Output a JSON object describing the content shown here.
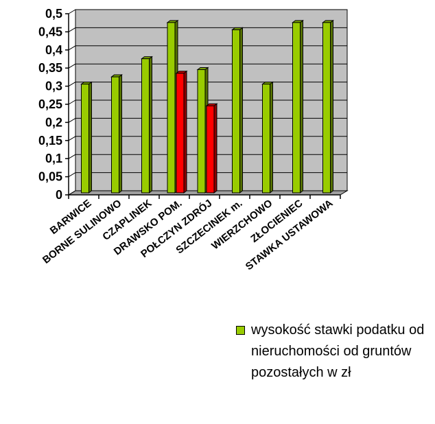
{
  "chart_data": {
    "type": "bar",
    "categories": [
      "BARWICE",
      "BORNE SULINOWO",
      "CZAPLINEK",
      "DRAWSKO POM.",
      "POŁCZYN ZDRÓJ",
      "SZCZECINEK m.",
      "WIERZCHOWO",
      "ZŁOCIENIEC",
      "STAWKA USTAWOWA"
    ],
    "series": [
      {
        "name": "wysokość stawki podatku od nieruchomości od gruntów pozostałych w zł",
        "color": "#99cc00",
        "values": [
          0.3,
          0.32,
          0.37,
          0.47,
          0.34,
          0.45,
          0.3,
          0.47,
          0.47
        ]
      },
      {
        "color": "#ff0000",
        "values": [
          null,
          null,
          null,
          0.33,
          0.24,
          null,
          null,
          null,
          null
        ]
      }
    ],
    "yticks": [
      "0",
      "0,05",
      "0,1",
      "0,15",
      "0,2",
      "0,25",
      "0,3",
      "0,35",
      "0,4",
      "0,45",
      "0,5"
    ],
    "ylim": [
      0,
      0.5
    ],
    "grid": true,
    "three_d": true,
    "plot_background": "#c0c0c0",
    "legend_position": "bottom-right"
  }
}
